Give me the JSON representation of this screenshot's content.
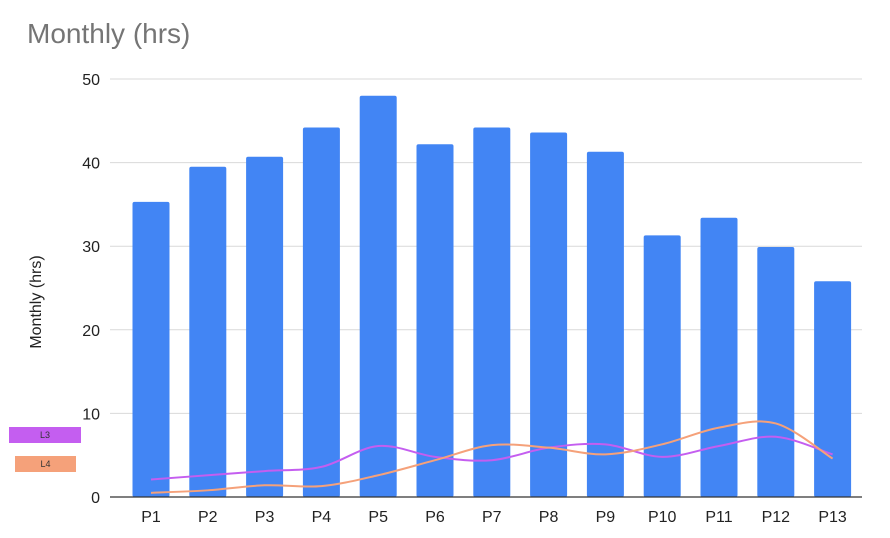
{
  "chart_data": {
    "type": "bar",
    "title": "Monthly (hrs)",
    "xlabel": "",
    "ylabel": "Monthly (hrs)",
    "ylim": [
      0,
      50
    ],
    "yticks": [
      0,
      10,
      20,
      30,
      40,
      50
    ],
    "grid": true,
    "legend_position": "left",
    "categories": [
      "P1",
      "P2",
      "P3",
      "P4",
      "P5",
      "P6",
      "P7",
      "P8",
      "P9",
      "P10",
      "P11",
      "P12",
      "P13"
    ],
    "series": [
      {
        "type": "bar",
        "color": "#4285f4",
        "values": [
          35.3,
          39.5,
          40.7,
          44.2,
          48.0,
          42.2,
          44.2,
          43.6,
          41.3,
          31.3,
          33.4,
          29.9,
          25.8
        ]
      },
      {
        "name": "L3",
        "type": "line",
        "color": "#c45ef0",
        "values": [
          2.1,
          2.6,
          3.1,
          3.6,
          6.1,
          4.8,
          4.4,
          5.9,
          6.3,
          4.8,
          6.1,
          7.2,
          5.1
        ]
      },
      {
        "name": "L4",
        "type": "line",
        "color": "#f5a17a",
        "values": [
          0.5,
          0.8,
          1.4,
          1.3,
          2.6,
          4.4,
          6.2,
          5.9,
          5.1,
          6.3,
          8.3,
          8.8,
          4.6
        ]
      }
    ],
    "legend": [
      {
        "label": "L3",
        "color": "#c45ef0"
      },
      {
        "label": "L4",
        "color": "#f5a17a"
      }
    ]
  }
}
